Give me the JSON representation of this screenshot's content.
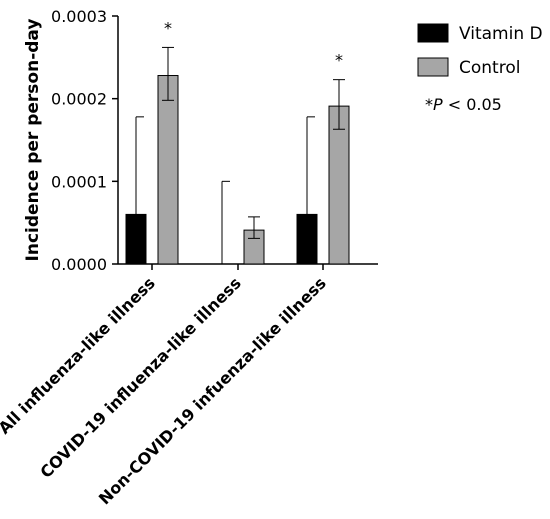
{
  "chart_data": {
    "type": "bar",
    "ylabel": "Incidence per person-day",
    "xlabel": "",
    "ylim": [
      0,
      0.0003
    ],
    "yticks": [
      0,
      0.0001,
      0.0002,
      0.0003
    ],
    "ytick_labels": [
      "0.0000",
      "0.0001",
      "0.0002",
      "0.0003"
    ],
    "categories": [
      "All influenza-like illness",
      "COVID-19 influenza-like illness",
      "Non-COVID-19 infuenza-like illness"
    ],
    "series": [
      {
        "name": "Vitamin D",
        "color": "#000000",
        "values": [
          6e-05,
          0.0,
          6e-05
        ],
        "error_upper": [
          0.000178,
          0.0001,
          0.000178
        ]
      },
      {
        "name": "Control",
        "color": "#a6a6a6",
        "values": [
          0.000228,
          4.1e-05,
          0.000191
        ],
        "error_lower": [
          0.000198,
          3.1e-05,
          0.000163
        ],
        "error_upper": [
          0.000262,
          5.7e-05,
          0.000223
        ]
      }
    ],
    "significance_markers": [
      "*",
      "",
      "*"
    ],
    "legend_position": "top-right",
    "significance_note": {
      "star": "*",
      "p": "P",
      "rest": " < 0.05"
    },
    "grid": false
  }
}
